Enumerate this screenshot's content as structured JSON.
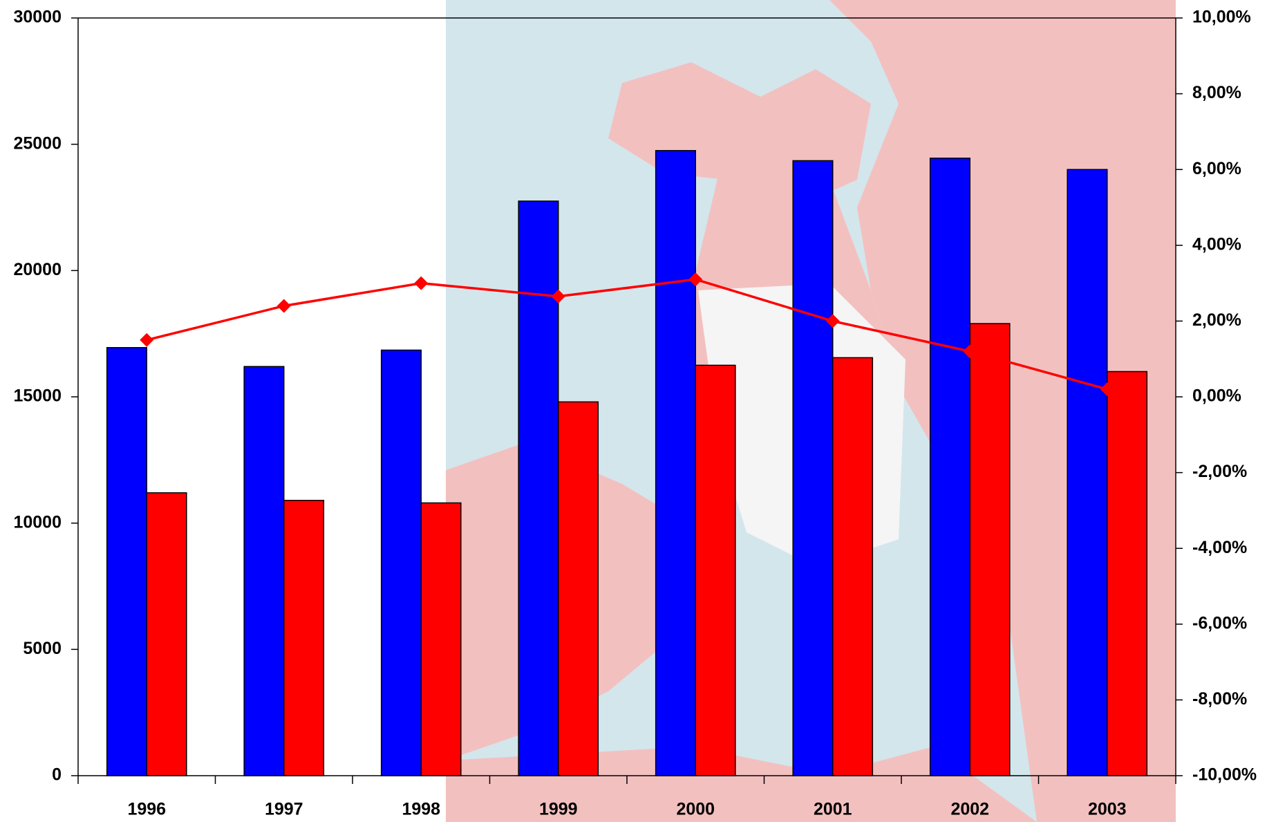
{
  "chart_data": {
    "type": "bar",
    "categories": [
      "1996",
      "1997",
      "1998",
      "1999",
      "2000",
      "2001",
      "2002",
      "2003"
    ],
    "series": [
      {
        "color": "#0000ff",
        "values": [
          16950,
          16200,
          16850,
          22750,
          24750,
          24350,
          24450,
          24000
        ]
      },
      {
        "color": "#ff0000",
        "values": [
          11200,
          10900,
          10800,
          14800,
          16250,
          16550,
          17900,
          16000
        ]
      },
      {
        "type": "line",
        "axis": "y2",
        "color": "#ff0000",
        "values": [
          1.5,
          2.4,
          3.0,
          2.65,
          3.1,
          2.0,
          1.2,
          0.2
        ]
      }
    ],
    "ylim": [
      0,
      30000
    ],
    "yticks": [
      0,
      5000,
      10000,
      15000,
      20000,
      25000,
      30000
    ],
    "y2lim": [
      -10,
      10
    ],
    "y2ticks": [
      {
        "value": -10,
        "label": "-10,00%"
      },
      {
        "value": -8,
        "label": "-8,00%"
      },
      {
        "value": -6,
        "label": "-6,00%"
      },
      {
        "value": -4,
        "label": "-4,00%"
      },
      {
        "value": -2,
        "label": "-2,00%"
      },
      {
        "value": 0,
        "label": "0,00%"
      },
      {
        "value": 2,
        "label": "2,00%"
      },
      {
        "value": 4,
        "label": "4,00%"
      },
      {
        "value": 6,
        "label": "6,00%"
      },
      {
        "value": 8,
        "label": "8,00%"
      },
      {
        "value": 10,
        "label": "10,00%"
      }
    ]
  }
}
